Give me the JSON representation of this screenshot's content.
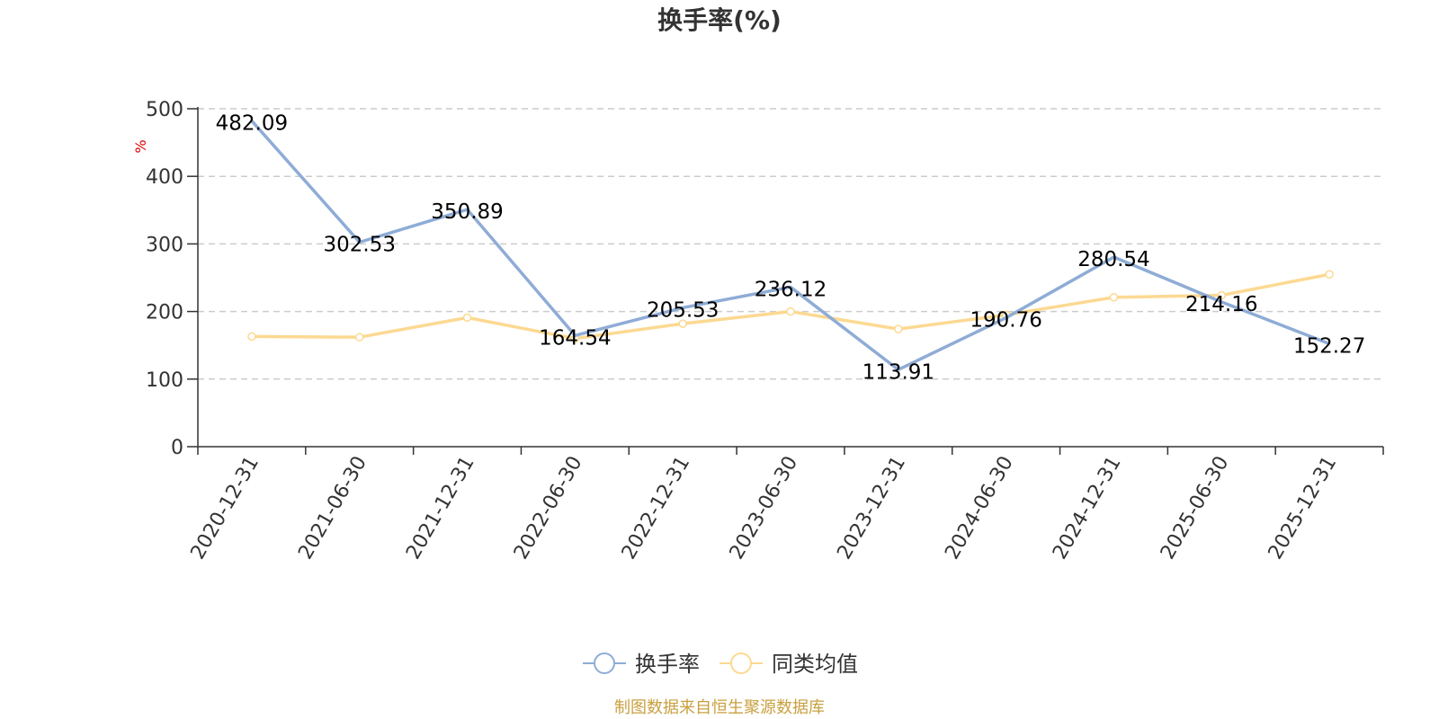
{
  "chart_data": {
    "type": "line",
    "title": "换手率(%)",
    "ylabel": "%",
    "ylim": [
      0,
      500
    ],
    "yticks": [
      0,
      100,
      200,
      300,
      400,
      500
    ],
    "grid": true,
    "legend_position": "bottom",
    "categories": [
      "2020-12-31",
      "2021-06-30",
      "2021-12-31",
      "2022-06-30",
      "2022-12-31",
      "2023-06-30",
      "2023-12-31",
      "2024-06-30",
      "2024-12-31",
      "2025-06-30",
      "2025-12-31"
    ],
    "series": [
      {
        "name": "换手率",
        "color": "#8eacd6",
        "values": [
          482.09,
          302.53,
          350.89,
          164.54,
          205.53,
          236.12,
          113.91,
          190.76,
          280.54,
          214.16,
          152.27
        ],
        "labels": [
          "482.09",
          "302.53",
          "350.89",
          "164.54",
          "205.53",
          "236.12",
          "113.91",
          "190.76",
          "280.54",
          "214.16",
          "152.27"
        ],
        "show_labels": true
      },
      {
        "name": "同类均值",
        "color": "#fcd992",
        "values": [
          163,
          162,
          191,
          160,
          182,
          200,
          174,
          195,
          221,
          224,
          255
        ],
        "show_labels": false
      }
    ]
  },
  "source_text": "制图数据来自恒生聚源数据库",
  "colors": {
    "source": "#c8a040",
    "axis": "#333333",
    "grid": "#cccccc"
  }
}
